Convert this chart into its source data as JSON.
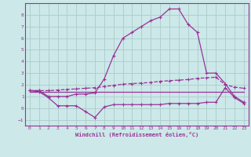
{
  "background_color": "#cce8e8",
  "grid_color": "#aacccc",
  "line_color": "#993399",
  "xlim": [
    -0.5,
    23.5
  ],
  "ylim": [
    -1.5,
    9.0
  ],
  "yticks": [
    -1,
    0,
    1,
    2,
    3,
    4,
    5,
    6,
    7,
    8
  ],
  "xticks": [
    0,
    1,
    2,
    3,
    4,
    5,
    6,
    7,
    8,
    9,
    10,
    11,
    12,
    13,
    14,
    15,
    16,
    17,
    18,
    19,
    20,
    21,
    22,
    23
  ],
  "xlabel": "Windchill (Refroidissement éolien,°C)",
  "line_main_x": [
    0,
    1,
    2,
    3,
    4,
    5,
    6,
    7,
    8,
    9,
    10,
    11,
    12,
    13,
    14,
    15,
    16,
    17,
    18,
    19,
    20,
    21,
    22,
    23
  ],
  "line_main_y": [
    1.5,
    1.5,
    1.0,
    1.0,
    1.0,
    1.2,
    1.2,
    1.3,
    2.5,
    4.5,
    6.0,
    6.5,
    7.0,
    7.5,
    7.8,
    8.5,
    8.5,
    7.2,
    6.5,
    3.0,
    3.0,
    2.1,
    1.0,
    0.5
  ],
  "line_mid_x": [
    0,
    1,
    2,
    3,
    4,
    5,
    6,
    7,
    8,
    9,
    10,
    11,
    12,
    13,
    14,
    15,
    16,
    17,
    18,
    19,
    20,
    21,
    22,
    23
  ],
  "line_mid_y": [
    1.5,
    1.5,
    1.5,
    1.55,
    1.6,
    1.65,
    1.7,
    1.75,
    1.85,
    1.95,
    2.05,
    2.1,
    2.15,
    2.2,
    2.3,
    2.35,
    2.4,
    2.45,
    2.55,
    2.6,
    2.65,
    2.0,
    1.8,
    1.7
  ],
  "line_flat_x": [
    0,
    1,
    2,
    3,
    4,
    5,
    6,
    7,
    8,
    9,
    10,
    11,
    12,
    13,
    14,
    15,
    16,
    17,
    18,
    19,
    20,
    21,
    22,
    23
  ],
  "line_flat_y": [
    1.4,
    1.4,
    1.4,
    1.4,
    1.4,
    1.4,
    1.4,
    1.4,
    1.4,
    1.4,
    1.4,
    1.4,
    1.4,
    1.4,
    1.4,
    1.4,
    1.4,
    1.4,
    1.4,
    1.4,
    1.4,
    1.4,
    1.4,
    1.4
  ],
  "line_low_x": [
    0,
    1,
    2,
    3,
    4,
    5,
    6,
    7,
    8,
    9,
    10,
    11,
    12,
    13,
    14,
    15,
    16,
    17,
    18,
    19,
    20,
    21,
    22,
    23
  ],
  "line_low_y": [
    1.5,
    1.4,
    0.9,
    0.2,
    0.2,
    0.2,
    -0.3,
    -0.8,
    0.1,
    0.3,
    0.3,
    0.3,
    0.3,
    0.3,
    0.3,
    0.4,
    0.4,
    0.4,
    0.4,
    0.5,
    0.5,
    1.75,
    0.9,
    0.4
  ]
}
